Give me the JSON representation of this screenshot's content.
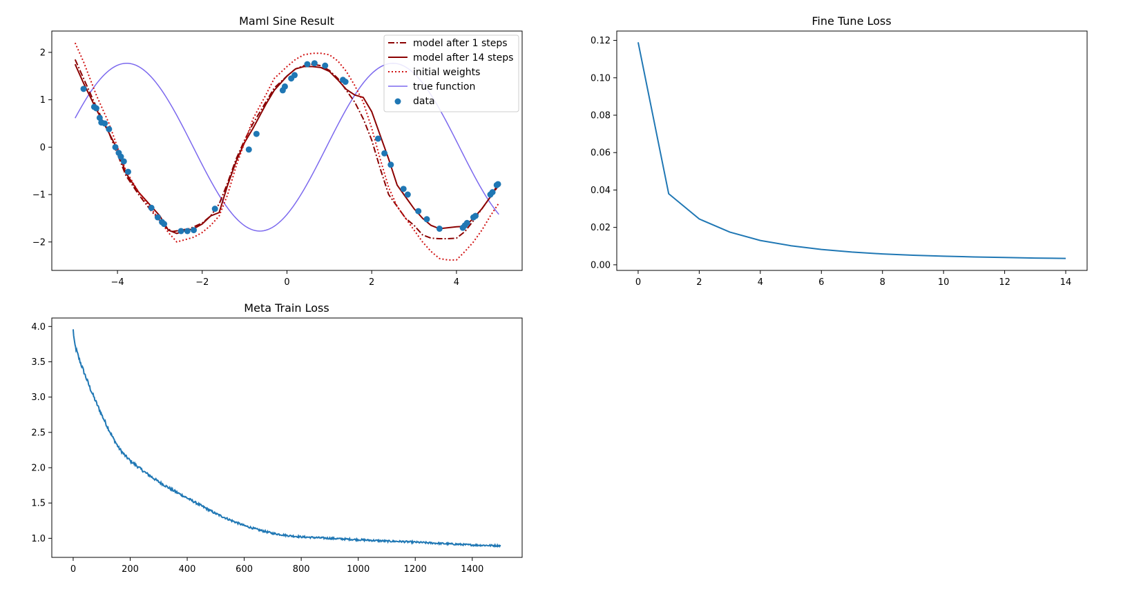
{
  "chart_data": [
    {
      "type": "line",
      "title": "Maml Sine Result",
      "xlabel": "",
      "ylabel": "",
      "xlim": [
        -5.55,
        5.55
      ],
      "ylim": [
        -2.6,
        2.45
      ],
      "xticks": [
        -4,
        -2,
        0,
        2,
        4
      ],
      "yticks": [
        -2,
        -1,
        0,
        1,
        2
      ],
      "xtick_labels": [
        "−4",
        "−2",
        "0",
        "2",
        "4"
      ],
      "ytick_labels": [
        "−2",
        "−1",
        "0",
        "1",
        "2"
      ],
      "legend_position": "top-right",
      "sine": {
        "amplitude": 1.77,
        "phase": 0.93,
        "x_start": -5.0,
        "x_end": 5.0
      },
      "series": [
        {
          "name": "model after 1 steps",
          "style": "dashdot",
          "color": "#8b0000",
          "x": [
            -5.0,
            -4.8,
            -4.5,
            -4.2,
            -4.0,
            -3.8,
            -3.5,
            -3.2,
            -3.0,
            -2.85,
            -2.7,
            -2.5,
            -2.3,
            -2.0,
            -1.8,
            -1.6,
            -1.4,
            -1.2,
            -1.0,
            -0.8,
            -0.5,
            -0.3,
            0.0,
            0.2,
            0.4,
            0.6,
            0.8,
            1.0,
            1.2,
            1.4,
            1.6,
            1.8,
            2.0,
            2.2,
            2.4,
            2.6,
            2.8,
            3.0,
            3.2,
            3.4,
            3.6,
            3.8,
            4.0,
            4.2,
            4.4,
            4.6,
            4.8,
            5.0
          ],
          "y": [
            1.85,
            1.45,
            0.85,
            0.3,
            -0.15,
            -0.6,
            -1.0,
            -1.35,
            -1.55,
            -1.7,
            -1.78,
            -1.75,
            -1.72,
            -1.6,
            -1.45,
            -1.2,
            -0.75,
            -0.25,
            0.15,
            0.5,
            0.95,
            1.25,
            1.5,
            1.65,
            1.72,
            1.75,
            1.72,
            1.62,
            1.45,
            1.2,
            0.95,
            0.6,
            0.15,
            -0.45,
            -1.0,
            -1.25,
            -1.5,
            -1.65,
            -1.85,
            -1.92,
            -1.93,
            -1.93,
            -1.92,
            -1.78,
            -1.55,
            -1.3,
            -1.05,
            -0.8
          ]
        },
        {
          "name": "model after 14 steps",
          "style": "solid",
          "color": "#8b0000",
          "x": [
            -5.0,
            -4.8,
            -4.5,
            -4.2,
            -4.0,
            -3.8,
            -3.5,
            -3.2,
            -3.0,
            -2.8,
            -2.6,
            -2.4,
            -2.2,
            -2.0,
            -1.8,
            -1.6,
            -1.4,
            -1.2,
            -1.0,
            -0.8,
            -0.5,
            -0.3,
            0.0,
            0.2,
            0.4,
            0.6,
            0.8,
            1.0,
            1.2,
            1.4,
            1.6,
            1.8,
            2.0,
            2.2,
            2.4,
            2.6,
            2.8,
            3.0,
            3.2,
            3.4,
            3.6,
            3.8,
            4.0,
            4.2,
            4.4,
            4.6,
            4.8,
            5.0
          ],
          "y": [
            1.75,
            1.35,
            0.8,
            0.3,
            -0.05,
            -0.55,
            -0.95,
            -1.25,
            -1.45,
            -1.75,
            -1.82,
            -1.76,
            -1.72,
            -1.62,
            -1.45,
            -1.38,
            -0.8,
            -0.3,
            0.1,
            0.4,
            0.9,
            1.2,
            1.5,
            1.65,
            1.7,
            1.7,
            1.68,
            1.6,
            1.42,
            1.22,
            1.1,
            1.05,
            0.75,
            0.25,
            -0.25,
            -0.8,
            -1.05,
            -1.3,
            -1.5,
            -1.65,
            -1.72,
            -1.7,
            -1.68,
            -1.67,
            -1.5,
            -1.3,
            -1.05,
            -0.75
          ]
        },
        {
          "name": "initial weights",
          "style": "dotted",
          "color": "#d01010",
          "x": [
            -5.0,
            -4.8,
            -4.5,
            -4.2,
            -4.0,
            -3.8,
            -3.5,
            -3.2,
            -3.0,
            -2.8,
            -2.6,
            -2.4,
            -2.2,
            -2.0,
            -1.8,
            -1.6,
            -1.4,
            -1.2,
            -1.0,
            -0.8,
            -0.5,
            -0.3,
            0.0,
            0.2,
            0.4,
            0.6,
            0.8,
            1.0,
            1.2,
            1.4,
            1.6,
            1.8,
            2.0,
            2.2,
            2.4,
            2.6,
            2.8,
            3.0,
            3.2,
            3.4,
            3.6,
            3.8,
            4.0,
            4.2,
            4.4,
            4.6,
            4.8,
            5.0
          ],
          "y": [
            2.2,
            1.8,
            1.1,
            0.5,
            0.0,
            -0.5,
            -0.95,
            -1.3,
            -1.55,
            -1.8,
            -2.0,
            -1.95,
            -1.9,
            -1.8,
            -1.65,
            -1.45,
            -1.0,
            -0.4,
            0.1,
            0.6,
            1.1,
            1.45,
            1.7,
            1.85,
            1.95,
            1.98,
            1.98,
            1.95,
            1.82,
            1.6,
            1.3,
            0.95,
            0.4,
            -0.25,
            -0.85,
            -1.25,
            -1.5,
            -1.75,
            -2.0,
            -2.2,
            -2.35,
            -2.38,
            -2.38,
            -2.2,
            -2.0,
            -1.75,
            -1.45,
            -1.18
          ]
        }
      ],
      "true_function_name": "true function",
      "true_function_color": "#7b68ee",
      "data_name": "data",
      "data_color": "#1f77b4",
      "data_x": [
        -4.8,
        -4.55,
        -4.5,
        -4.42,
        -4.38,
        -4.3,
        -4.2,
        -4.05,
        -3.97,
        -3.92,
        -3.85,
        -3.75,
        -3.2,
        -3.05,
        -2.95,
        -2.9,
        -2.5,
        -2.35,
        -2.2,
        -1.7,
        -0.9,
        -0.72,
        -0.1,
        -0.05,
        0.1,
        0.18,
        0.48,
        0.65,
        0.9,
        1.32,
        1.38,
        2.15,
        2.3,
        2.45,
        2.75,
        2.85,
        3.1,
        3.3,
        3.6,
        4.15,
        4.2,
        4.25,
        4.4,
        4.45,
        4.8,
        4.85,
        4.95,
        4.98
      ],
      "data_y": [
        1.23,
        0.85,
        0.82,
        0.62,
        0.52,
        0.5,
        0.38,
        0.0,
        -0.12,
        -0.2,
        -0.3,
        -0.52,
        -1.28,
        -1.48,
        -1.58,
        -1.62,
        -1.77,
        -1.77,
        -1.75,
        -1.3,
        -0.05,
        0.28,
        1.2,
        1.28,
        1.45,
        1.52,
        1.75,
        1.77,
        1.72,
        1.42,
        1.38,
        0.18,
        -0.13,
        -0.37,
        -0.88,
        -1.0,
        -1.35,
        -1.52,
        -1.72,
        -1.7,
        -1.65,
        -1.6,
        -1.48,
        -1.45,
        -1.0,
        -0.95,
        -0.8,
        -0.78
      ]
    },
    {
      "type": "line",
      "title": "Fine Tune Loss",
      "xlabel": "",
      "ylabel": "",
      "xlim": [
        -0.7,
        14.7
      ],
      "ylim": [
        -0.003,
        0.125
      ],
      "xticks": [
        0,
        2,
        4,
        6,
        8,
        10,
        12,
        14
      ],
      "yticks": [
        0.0,
        0.02,
        0.04,
        0.06,
        0.08,
        0.1,
        0.12
      ],
      "xtick_labels": [
        "0",
        "2",
        "4",
        "6",
        "8",
        "10",
        "12",
        "14"
      ],
      "ytick_labels": [
        "0.00",
        "0.02",
        "0.04",
        "0.06",
        "0.08",
        "0.10",
        "0.12"
      ],
      "series": [
        {
          "name": "fine tune loss",
          "color": "#1f77b4",
          "x": [
            0,
            1,
            2,
            3,
            4,
            5,
            6,
            7,
            8,
            9,
            10,
            11,
            12,
            13,
            14
          ],
          "y": [
            0.119,
            0.038,
            0.0245,
            0.0175,
            0.013,
            0.0102,
            0.0082,
            0.0068,
            0.0058,
            0.0051,
            0.0046,
            0.0042,
            0.0039,
            0.0036,
            0.0034
          ]
        }
      ]
    },
    {
      "type": "line",
      "title": "Meta Train Loss",
      "xlabel": "",
      "ylabel": "",
      "xlim": [
        -75,
        1575
      ],
      "ylim": [
        0.73,
        4.12
      ],
      "xticks": [
        0,
        200,
        400,
        600,
        800,
        1000,
        1200,
        1400
      ],
      "yticks": [
        1.0,
        1.5,
        2.0,
        2.5,
        3.0,
        3.5,
        4.0
      ],
      "xtick_labels": [
        "0",
        "200",
        "400",
        "600",
        "800",
        "1000",
        "1200",
        "1400"
      ],
      "ytick_labels": [
        "1.0",
        "1.5",
        "2.0",
        "2.5",
        "3.0",
        "3.5",
        "4.0"
      ],
      "series": [
        {
          "name": "meta train loss",
          "color": "#1f77b4",
          "x": [
            0,
            5,
            10,
            20,
            40,
            60,
            80,
            100,
            120,
            140,
            160,
            180,
            200,
            250,
            300,
            350,
            400,
            450,
            500,
            550,
            600,
            650,
            700,
            750,
            800,
            850,
            900,
            950,
            1000,
            1050,
            1100,
            1150,
            1200,
            1250,
            1300,
            1350,
            1400,
            1450,
            1500
          ],
          "y": [
            3.95,
            3.75,
            3.68,
            3.55,
            3.33,
            3.12,
            2.93,
            2.75,
            2.58,
            2.42,
            2.28,
            2.18,
            2.1,
            1.94,
            1.8,
            1.68,
            1.57,
            1.46,
            1.35,
            1.26,
            1.18,
            1.12,
            1.07,
            1.04,
            1.02,
            1.01,
            1.0,
            0.99,
            0.98,
            0.97,
            0.96,
            0.955,
            0.945,
            0.935,
            0.925,
            0.915,
            0.905,
            0.9,
            0.895
          ]
        }
      ]
    }
  ]
}
